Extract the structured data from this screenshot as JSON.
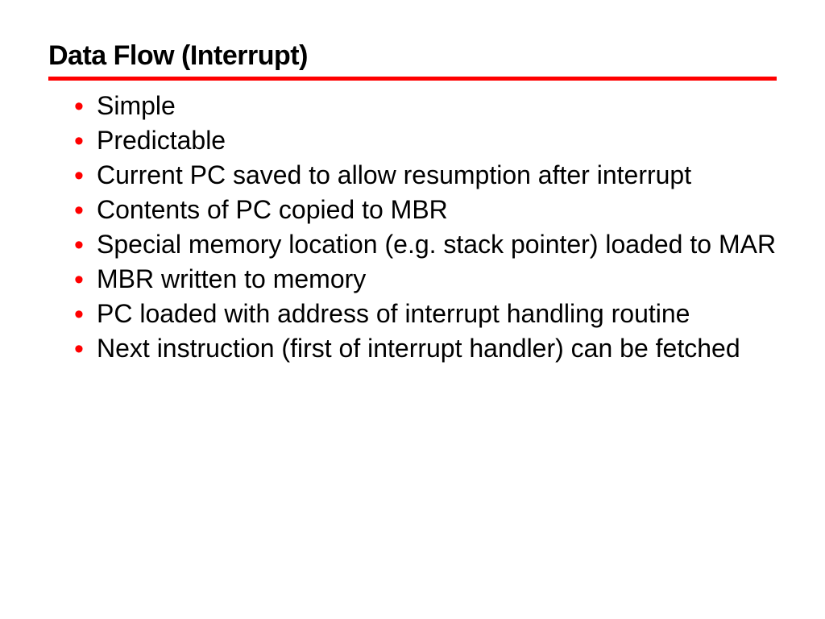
{
  "slide": {
    "title": "Data Flow (Interrupt)",
    "title_fontsize": 34,
    "title_color": "#000000",
    "rule_color": "#ff0000",
    "rule_thickness": 5,
    "bullet_color": "#ff0000",
    "bullet_fontsize": 34,
    "body_fontsize": 32,
    "body_color": "#000000",
    "background_color": "#ffffff",
    "bullets": [
      "Simple",
      "Predictable",
      "Current PC saved to allow resumption after interrupt",
      "Contents of PC copied to MBR",
      "Special memory location (e.g. stack pointer) loaded to MAR",
      "MBR written to memory",
      "PC loaded with address of interrupt handling routine",
      "Next instruction (first of interrupt handler) can be fetched"
    ]
  }
}
